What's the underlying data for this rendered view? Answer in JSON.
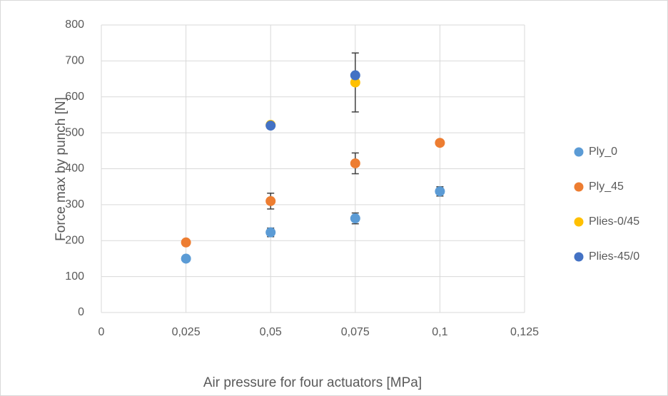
{
  "chart_data": {
    "type": "scatter",
    "x_label": "Air pressure for four actuators [MPa]",
    "y_label": "Force max by punch [N]",
    "xlim": [
      0,
      0.125
    ],
    "xticks": [
      0,
      {
        "value": 0.025,
        "label": "0,025"
      },
      {
        "value": 0.05,
        "label": "0,05"
      },
      {
        "value": 0.075,
        "label": "0,075"
      },
      {
        "value": 0.1,
        "label": "0,1"
      },
      {
        "value": 0.125,
        "label": "0,125"
      }
    ],
    "ylim": [
      0,
      800
    ],
    "yticks": [
      0,
      100,
      200,
      300,
      400,
      500,
      600,
      700,
      800
    ],
    "grid": true,
    "legend": "right",
    "series": [
      {
        "name": "Ply_0",
        "color": "#5b9bd5",
        "x": [
          0.025,
          0.05,
          0.075,
          0.1
        ],
        "values": [
          150,
          223,
          262,
          337
        ],
        "errors": [
          null,
          12,
          15,
          13
        ]
      },
      {
        "name": "Ply_45",
        "color": "#ed7d31",
        "x": [
          0.025,
          0.05,
          0.075,
          0.1
        ],
        "values": [
          195,
          310,
          415,
          472
        ],
        "errors": [
          null,
          22,
          29,
          null
        ]
      },
      {
        "name": "Plies-0/45",
        "color": "#ffc000",
        "x": [
          0.05,
          0.075
        ],
        "values": [
          522,
          640
        ],
        "errors": [
          null,
          82
        ]
      },
      {
        "name": "Plies-45/0",
        "color": "#4472c4",
        "x": [
          0.05,
          0.075
        ],
        "values": [
          520,
          660
        ],
        "errors": [
          null,
          null
        ]
      }
    ]
  }
}
